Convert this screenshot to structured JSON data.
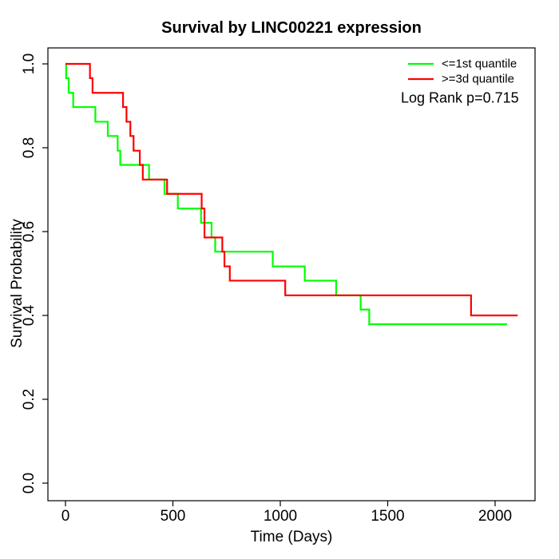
{
  "chart_data": {
    "type": "line",
    "subtype": "kaplan_meier_step",
    "title": "Survival by LINC00221 expression",
    "xlabel": "Time (Days)",
    "ylabel": "Survival Probability",
    "xlim": [
      -80,
      2190
    ],
    "ylim": [
      0.0,
      1.04
    ],
    "grid": "off",
    "xticks": [
      {
        "value": 0,
        "label": "0"
      },
      {
        "value": 500,
        "label": "500"
      },
      {
        "value": 1000,
        "label": "1000"
      },
      {
        "value": 1500,
        "label": "1500"
      },
      {
        "value": 2000,
        "label": "2000"
      }
    ],
    "yticks": [
      {
        "value": 0.0,
        "label": "0.0"
      },
      {
        "value": 0.2,
        "label": "0.2"
      },
      {
        "value": 0.4,
        "label": "0.4"
      },
      {
        "value": 0.6,
        "label": "0.6"
      },
      {
        "value": 0.8,
        "label": "0.8"
      },
      {
        "value": 1.0,
        "label": "1.0"
      }
    ],
    "legend": {
      "position": "top-right",
      "entries": [
        {
          "label": "<=1st quantile",
          "color": "#00FF00"
        },
        {
          "label": ">=3d quantile",
          "color": "#FF0000"
        }
      ]
    },
    "annotation": "Log Rank p=0.715",
    "series": [
      {
        "name": "<=1st quantile",
        "color": "#00FF00",
        "start": [
          0,
          1.0
        ],
        "steps": [
          [
            3,
            0.966
          ],
          [
            15,
            0.931
          ],
          [
            36,
            0.897
          ],
          [
            139,
            0.862
          ],
          [
            197,
            0.828
          ],
          [
            243,
            0.793
          ],
          [
            255,
            0.759
          ],
          [
            389,
            0.724
          ],
          [
            461,
            0.69
          ],
          [
            523,
            0.655
          ],
          [
            631,
            0.621
          ],
          [
            680,
            0.586
          ],
          [
            697,
            0.552
          ],
          [
            965,
            0.517
          ],
          [
            1114,
            0.483
          ],
          [
            1260,
            0.448
          ],
          [
            1374,
            0.414
          ],
          [
            1414,
            0.379
          ]
        ],
        "end_time": 2056,
        "final_value": 0.379
      },
      {
        "name": ">=3d quantile",
        "color": "#FF0000",
        "start": [
          0,
          1.0
        ],
        "steps": [
          [
            114,
            0.966
          ],
          [
            126,
            0.931
          ],
          [
            268,
            0.897
          ],
          [
            284,
            0.862
          ],
          [
            302,
            0.828
          ],
          [
            317,
            0.793
          ],
          [
            346,
            0.759
          ],
          [
            360,
            0.724
          ],
          [
            473,
            0.69
          ],
          [
            634,
            0.655
          ],
          [
            647,
            0.586
          ],
          [
            730,
            0.552
          ],
          [
            740,
            0.517
          ],
          [
            765,
            0.483
          ],
          [
            1023,
            0.448
          ],
          [
            1888,
            0.4
          ]
        ],
        "end_time": 2105,
        "final_value": 0.4
      }
    ],
    "axis_color": "#000000",
    "background_color": "#FFFFFF"
  }
}
